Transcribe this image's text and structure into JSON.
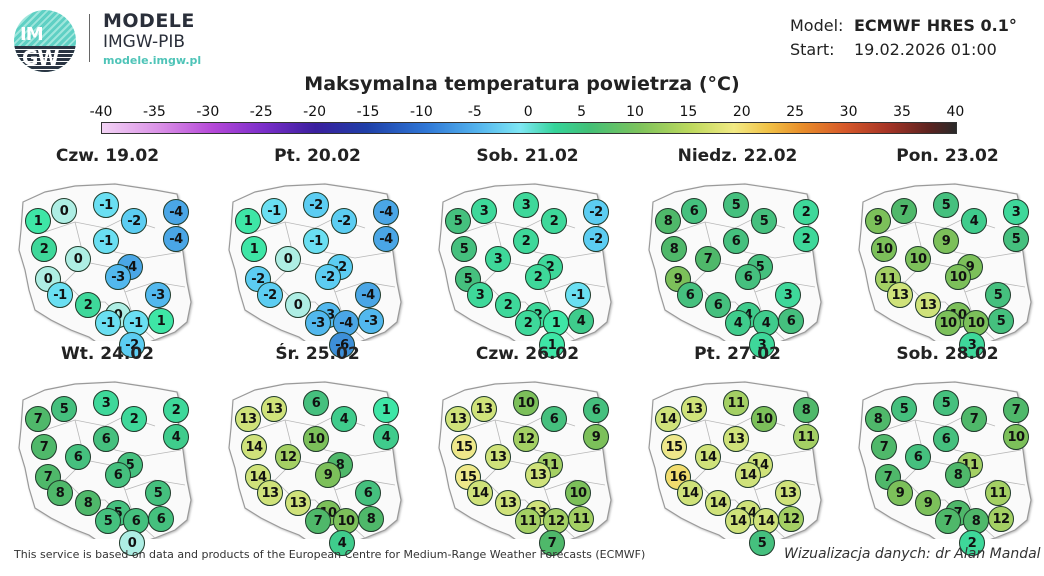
{
  "header": {
    "logo_text_top": "IM",
    "logo_text_bottom": "GW",
    "brand_title": "MODELE",
    "brand_subtitle": "IMGW-PIB",
    "brand_url": "modele.imgw.pl",
    "model_label": "Model:",
    "model_value": "ECMWF HRES 0.1°",
    "start_label": "Start:",
    "start_value": "19.02.2026 01:00"
  },
  "legend": {
    "title": "Maksymalna temperatura powietrza (°C)",
    "ticks": [
      "-40",
      "-35",
      "-30",
      "-25",
      "-20",
      "-15",
      "-10",
      "-5",
      "0",
      "5",
      "10",
      "15",
      "20",
      "25",
      "30",
      "35",
      "40"
    ]
  },
  "station_positions": [
    [
      20,
      36
    ],
    [
      46,
      26
    ],
    [
      88,
      20
    ],
    [
      116,
      36
    ],
    [
      158,
      27
    ],
    [
      158,
      54
    ],
    [
      26,
      64
    ],
    [
      60,
      74
    ],
    [
      88,
      56
    ],
    [
      112,
      82
    ],
    [
      30,
      94
    ],
    [
      100,
      92
    ],
    [
      42,
      110
    ],
    [
      140,
      110
    ],
    [
      70,
      120
    ],
    [
      100,
      130
    ],
    [
      143,
      136
    ],
    [
      90,
      138
    ],
    [
      118,
      138
    ],
    [
      114,
      160
    ]
  ],
  "panels": [
    {
      "day": "Czw. 19.02",
      "values": [
        "1",
        "0",
        "-1",
        "-2",
        "-4",
        "-4",
        "2",
        "0",
        "-1",
        "-4",
        "0",
        "-3",
        "-1",
        "-3",
        "2",
        "0",
        "1",
        "-1",
        "-1",
        "-2"
      ]
    },
    {
      "day": "Pt. 20.02",
      "values": [
        "1",
        "-1",
        "-2",
        "-2",
        "-4",
        "-4",
        "1",
        "0",
        "-1",
        "-2",
        "-2",
        "-2",
        "-2",
        "-4",
        "0",
        "-3",
        "-3",
        "-3",
        "-4",
        "-6"
      ]
    },
    {
      "day": "Sob. 21.02",
      "values": [
        "5",
        "3",
        "3",
        "2",
        "-2",
        "-2",
        "5",
        "3",
        "2",
        "2",
        "5",
        "2",
        "3",
        "-1",
        "2",
        "2",
        "4",
        "2",
        "1",
        "1"
      ]
    },
    {
      "day": "Niedz. 22.02",
      "values": [
        "8",
        "6",
        "5",
        "5",
        "2",
        "2",
        "8",
        "7",
        "6",
        "5",
        "9",
        "6",
        "6",
        "3",
        "6",
        "4",
        "6",
        "4",
        "4",
        "3"
      ]
    },
    {
      "day": "Pon. 23.02",
      "values": [
        "9",
        "7",
        "5",
        "4",
        "3",
        "5",
        "10",
        "10",
        "9",
        "9",
        "11",
        "10",
        "13",
        "5",
        "13",
        "10",
        "5",
        "10",
        "10",
        "3"
      ]
    },
    {
      "day": "Wt. 24.02",
      "values": [
        "7",
        "5",
        "3",
        "2",
        "2",
        "4",
        "7",
        "6",
        "6",
        "5",
        "7",
        "6",
        "8",
        "5",
        "8",
        "5",
        "6",
        "5",
        "6",
        "0"
      ]
    },
    {
      "day": "Śr. 25.02",
      "values": [
        "13",
        "13",
        "6",
        "4",
        "1",
        "4",
        "14",
        "12",
        "10",
        "8",
        "14",
        "9",
        "13",
        "6",
        "13",
        "10",
        "8",
        "7",
        "10",
        "4"
      ]
    },
    {
      "day": "Czw. 26.02",
      "values": [
        "13",
        "13",
        "10",
        "6",
        "6",
        "9",
        "15",
        "13",
        "12",
        "11",
        "15",
        "13",
        "14",
        "10",
        "13",
        "13",
        "11",
        "11",
        "12",
        "7"
      ]
    },
    {
      "day": "Pt. 27.02",
      "values": [
        "14",
        "13",
        "11",
        "10",
        "8",
        "11",
        "15",
        "14",
        "13",
        "14",
        "16",
        "14",
        "14",
        "13",
        "14",
        "14",
        "12",
        "14",
        "14",
        "5"
      ]
    },
    {
      "day": "Sob. 28.02",
      "values": [
        "8",
        "5",
        "5",
        "7",
        "7",
        "10",
        "7",
        "6",
        "6",
        "11",
        "7",
        "8",
        "9",
        "11",
        "9",
        "7",
        "12",
        "7",
        "8",
        "2"
      ]
    }
  ],
  "footer": {
    "credit_left": "This service is based on data and products of the European Centre for Medium-Range Weather Forecasts (ECMWF)",
    "credit_right": "Wizualizacja danych: dr Alan Mandal"
  },
  "colors": {
    "brand_teal": "#4fc4b8",
    "brand_dark": "#2a2f3a"
  }
}
